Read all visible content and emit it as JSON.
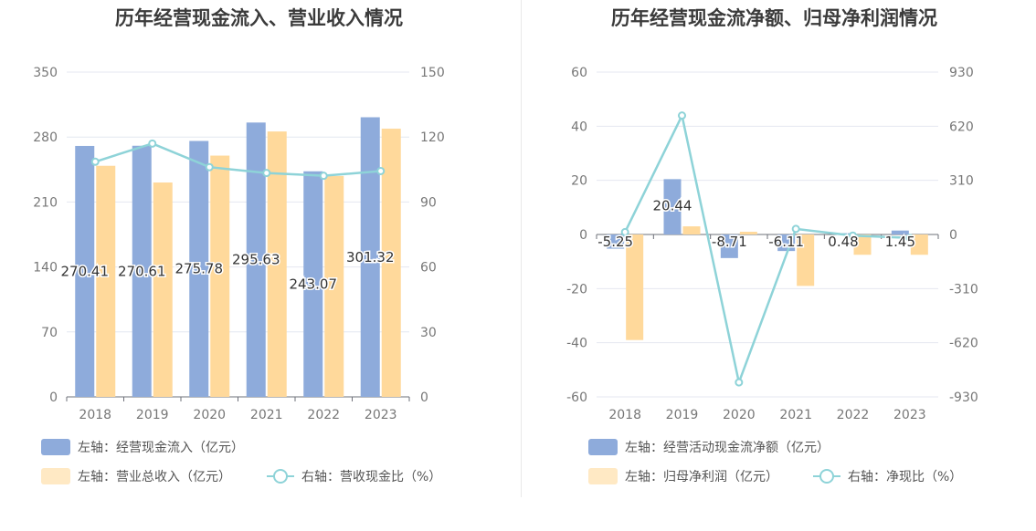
{
  "colors": {
    "blue": "#8eabdb",
    "orange": "#ffd99b",
    "line": "#8ed3d8",
    "grid": "#e4e7f0"
  },
  "chart_data": [
    {
      "type": "bar",
      "title": "历年经营现金流入、营业收入情况",
      "categories": [
        "2018",
        "2019",
        "2020",
        "2021",
        "2022",
        "2023"
      ],
      "ylim_left": [
        0,
        350
      ],
      "yticks_left": [
        "0",
        "70",
        "140",
        "210",
        "280",
        "350"
      ],
      "ylim_right": [
        0,
        150
      ],
      "yticks_right": [
        "0",
        "30",
        "60",
        "90",
        "120",
        "150"
      ],
      "grid": true,
      "legend_position": "bottom-left",
      "series": [
        {
          "name": "左轴：经营现金流入（亿元）",
          "axis": "left",
          "type": "bar",
          "color": "#8eabdb",
          "values": [
            270.41,
            270.61,
            275.78,
            295.63,
            243.07,
            301.32
          ],
          "labels": [
            "270.41",
            "270.61",
            "275.78",
            "295.63",
            "243.07",
            "301.32"
          ]
        },
        {
          "name": "左轴：营业总收入（亿元）",
          "axis": "left",
          "type": "bar",
          "color": "#ffd99b",
          "values": [
            249,
            231,
            260,
            286,
            238,
            289
          ]
        },
        {
          "name": "右轴：营收现金比（%）",
          "axis": "right",
          "type": "line",
          "color": "#8ed3d8",
          "values": [
            108.6,
            117.0,
            106.1,
            103.4,
            102.1,
            104.3
          ]
        }
      ]
    },
    {
      "type": "bar",
      "title": "历年经营现金流净额、归母净利润情况",
      "categories": [
        "2018",
        "2019",
        "2020",
        "2021",
        "2022",
        "2023"
      ],
      "ylim_left": [
        -60,
        60
      ],
      "yticks_left": [
        "-60",
        "-40",
        "-20",
        "0",
        "20",
        "40",
        "60"
      ],
      "ylim_right": [
        -930,
        930
      ],
      "yticks_right": [
        "-930",
        "-620",
        "-310",
        "0",
        "310",
        "620",
        "930"
      ],
      "grid": true,
      "legend_position": "bottom-left",
      "series": [
        {
          "name": "左轴：经营活动现金流净额（亿元）",
          "axis": "left",
          "type": "bar",
          "color": "#8eabdb",
          "values": [
            -5.25,
            20.44,
            -8.71,
            -6.11,
            0.48,
            1.45
          ],
          "labels": [
            "-5.25",
            "20.44",
            "-8.71",
            "-6.11",
            "0.48",
            "1.45"
          ]
        },
        {
          "name": "左轴：归母净利润（亿元）",
          "axis": "left",
          "type": "bar",
          "color": "#ffd99b",
          "values": [
            -39,
            3,
            1,
            -19,
            -7.5,
            -7.5
          ]
        },
        {
          "name": "右轴：净现比（%）",
          "axis": "right",
          "type": "line",
          "color": "#8ed3d8",
          "values": [
            13.5,
            681,
            -847,
            32,
            -6.4,
            -19.3
          ]
        }
      ]
    }
  ]
}
